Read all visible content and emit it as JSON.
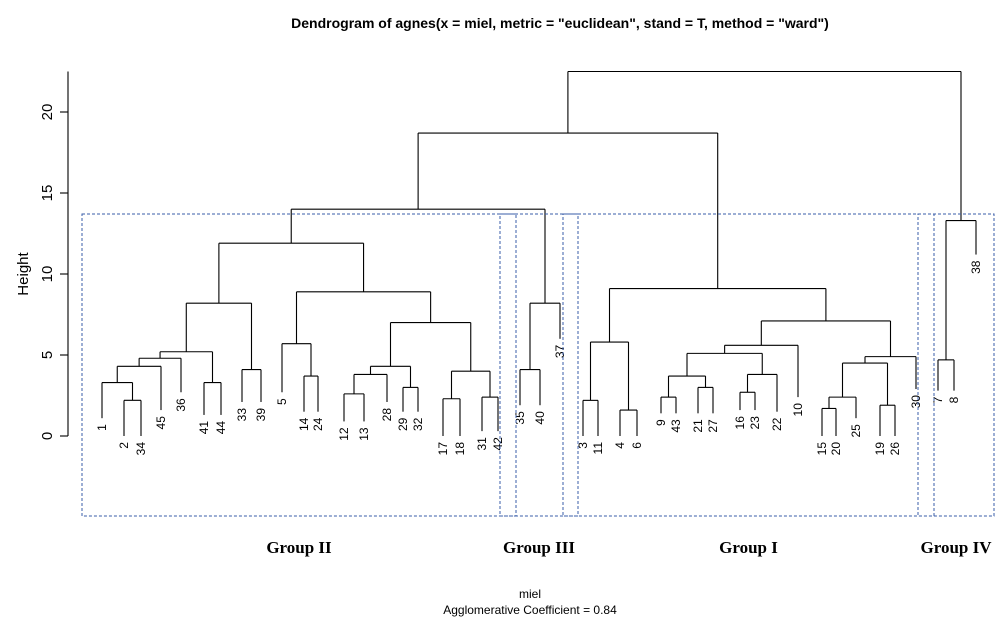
{
  "chart_data": {
    "type": "dendrogram",
    "title": "Dendrogram of  agnes(x = miel, metric = \"euclidean\", stand = T, method = \"ward\")",
    "ylabel": "Height",
    "xlabel": "miel",
    "subtitle": "Agglomerative Coefficient =  0.84",
    "ylim": [
      0,
      22.5
    ],
    "yticks": [
      0,
      5,
      10,
      15,
      20
    ],
    "leaves": [
      "1",
      "2",
      "34",
      "45",
      "36",
      "41",
      "44",
      "33",
      "39",
      "5",
      "14",
      "24",
      "12",
      "13",
      "28",
      "29",
      "32",
      "17",
      "18",
      "31",
      "42",
      "35",
      "40",
      "37",
      "3",
      "11",
      "4",
      "6",
      "9",
      "43",
      "21",
      "27",
      "16",
      "23",
      "22",
      "10",
      "15",
      "20",
      "25",
      "19",
      "26",
      "30",
      "7",
      "8",
      "38"
    ],
    "leaf_heights": [
      1.1,
      0.0,
      0.0,
      1.6,
      2.7,
      1.3,
      1.3,
      2.1,
      2.1,
      2.7,
      1.5,
      1.5,
      0.9,
      0.9,
      2.1,
      1.5,
      1.5,
      0.0,
      0.0,
      0.3,
      0.3,
      1.9,
      1.9,
      6.0,
      0.0,
      0.0,
      0.0,
      0.0,
      1.4,
      1.4,
      1.4,
      1.4,
      1.6,
      1.6,
      1.5,
      2.4,
      0.0,
      0.0,
      1.1,
      0.0,
      0.0,
      2.9,
      2.8,
      2.8,
      11.2
    ],
    "merges": [
      {
        "id": "m_2_34",
        "left": "2",
        "right": "34",
        "height": 2.2
      },
      {
        "id": "m_1_2_34",
        "left": "1",
        "right": "m_2_34",
        "height": 3.3
      },
      {
        "id": "m_a45",
        "left": "m_1_2_34",
        "right": "45",
        "height": 4.3
      },
      {
        "id": "m_a36",
        "left": "m_a45",
        "right": "36",
        "height": 4.8
      },
      {
        "id": "m_41_44",
        "left": "41",
        "right": "44",
        "height": 3.3
      },
      {
        "id": "m_a41",
        "left": "m_a36",
        "right": "m_41_44",
        "height": 5.2
      },
      {
        "id": "m_33_39",
        "left": "33",
        "right": "39",
        "height": 4.1
      },
      {
        "id": "m_c1",
        "left": "m_a41",
        "right": "m_33_39",
        "height": 8.2
      },
      {
        "id": "m_14_24",
        "left": "14",
        "right": "24",
        "height": 3.7
      },
      {
        "id": "m_5_14",
        "left": "5",
        "right": "m_14_24",
        "height": 5.7
      },
      {
        "id": "m_12_13",
        "left": "12",
        "right": "13",
        "height": 2.6
      },
      {
        "id": "m_12_28",
        "left": "m_12_13",
        "right": "28",
        "height": 3.8
      },
      {
        "id": "m_29_32",
        "left": "29",
        "right": "32",
        "height": 3.0
      },
      {
        "id": "m_12_29",
        "left": "m_12_28",
        "right": "m_29_32",
        "height": 4.3
      },
      {
        "id": "m_17_18",
        "left": "17",
        "right": "18",
        "height": 2.3
      },
      {
        "id": "m_31_42",
        "left": "31",
        "right": "42",
        "height": 2.4
      },
      {
        "id": "m_17_31",
        "left": "m_17_18",
        "right": "m_31_42",
        "height": 4.0
      },
      {
        "id": "m_c2b",
        "left": "m_12_29",
        "right": "m_17_31",
        "height": 7.0
      },
      {
        "id": "m_c2",
        "left": "m_5_14",
        "right": "m_c2b",
        "height": 8.9
      },
      {
        "id": "m_g2",
        "left": "m_c1",
        "right": "m_c2",
        "height": 11.9
      },
      {
        "id": "m_35_40",
        "left": "35",
        "right": "40",
        "height": 4.1
      },
      {
        "id": "m_g3",
        "left": "m_35_40",
        "right": "37",
        "height": 8.2
      },
      {
        "id": "m_g23",
        "left": "m_g2",
        "right": "m_g3",
        "height": 14.0
      },
      {
        "id": "m_3_11",
        "left": "3",
        "right": "11",
        "height": 2.2
      },
      {
        "id": "m_4_6",
        "left": "4",
        "right": "6",
        "height": 1.6
      },
      {
        "id": "m_3_4",
        "left": "m_3_11",
        "right": "m_4_6",
        "height": 5.8
      },
      {
        "id": "m_9_43",
        "left": "9",
        "right": "43",
        "height": 2.4
      },
      {
        "id": "m_21_27",
        "left": "21",
        "right": "27",
        "height": 3.0
      },
      {
        "id": "m_9_21",
        "left": "m_9_43",
        "right": "m_21_27",
        "height": 3.7
      },
      {
        "id": "m_16_23",
        "left": "16",
        "right": "23",
        "height": 2.7
      },
      {
        "id": "m_16_22",
        "left": "m_16_23",
        "right": "22",
        "height": 3.8
      },
      {
        "id": "m_9_16",
        "left": "m_9_21",
        "right": "m_16_22",
        "height": 5.1
      },
      {
        "id": "m_9_10",
        "left": "m_9_16",
        "right": "10",
        "height": 5.6
      },
      {
        "id": "m_15_20",
        "left": "15",
        "right": "20",
        "height": 1.7
      },
      {
        "id": "m_15_25",
        "left": "m_15_20",
        "right": "25",
        "height": 2.4
      },
      {
        "id": "m_19_26",
        "left": "19",
        "right": "26",
        "height": 1.9
      },
      {
        "id": "m_15_19",
        "left": "m_15_25",
        "right": "m_19_26",
        "height": 4.5
      },
      {
        "id": "m_15_30",
        "left": "m_15_19",
        "right": "30",
        "height": 4.9
      },
      {
        "id": "m_9_15",
        "left": "m_9_10",
        "right": "m_15_30",
        "height": 7.1
      },
      {
        "id": "m_g1",
        "left": "m_3_4",
        "right": "m_9_15",
        "height": 9.1
      },
      {
        "id": "m_g231",
        "left": "m_g23",
        "right": "m_g1",
        "height": 18.7
      },
      {
        "id": "m_7_8",
        "left": "7",
        "right": "8",
        "height": 4.7
      },
      {
        "id": "m_g4",
        "left": "m_7_8",
        "right": "38",
        "height": 13.3
      },
      {
        "id": "m_root",
        "left": "m_g231",
        "right": "m_g4",
        "height": 22.5
      }
    ],
    "groups": [
      {
        "label": "Group II",
        "from": "1",
        "to": "42"
      },
      {
        "label": "Group III",
        "from": "35",
        "to": "37"
      },
      {
        "label": "Group I",
        "from": "3",
        "to": "30"
      },
      {
        "label": "Group IV",
        "from": "7",
        "to": "38"
      }
    ],
    "colors": {
      "line": "#000000",
      "group_box": "#3a5ea8"
    }
  }
}
